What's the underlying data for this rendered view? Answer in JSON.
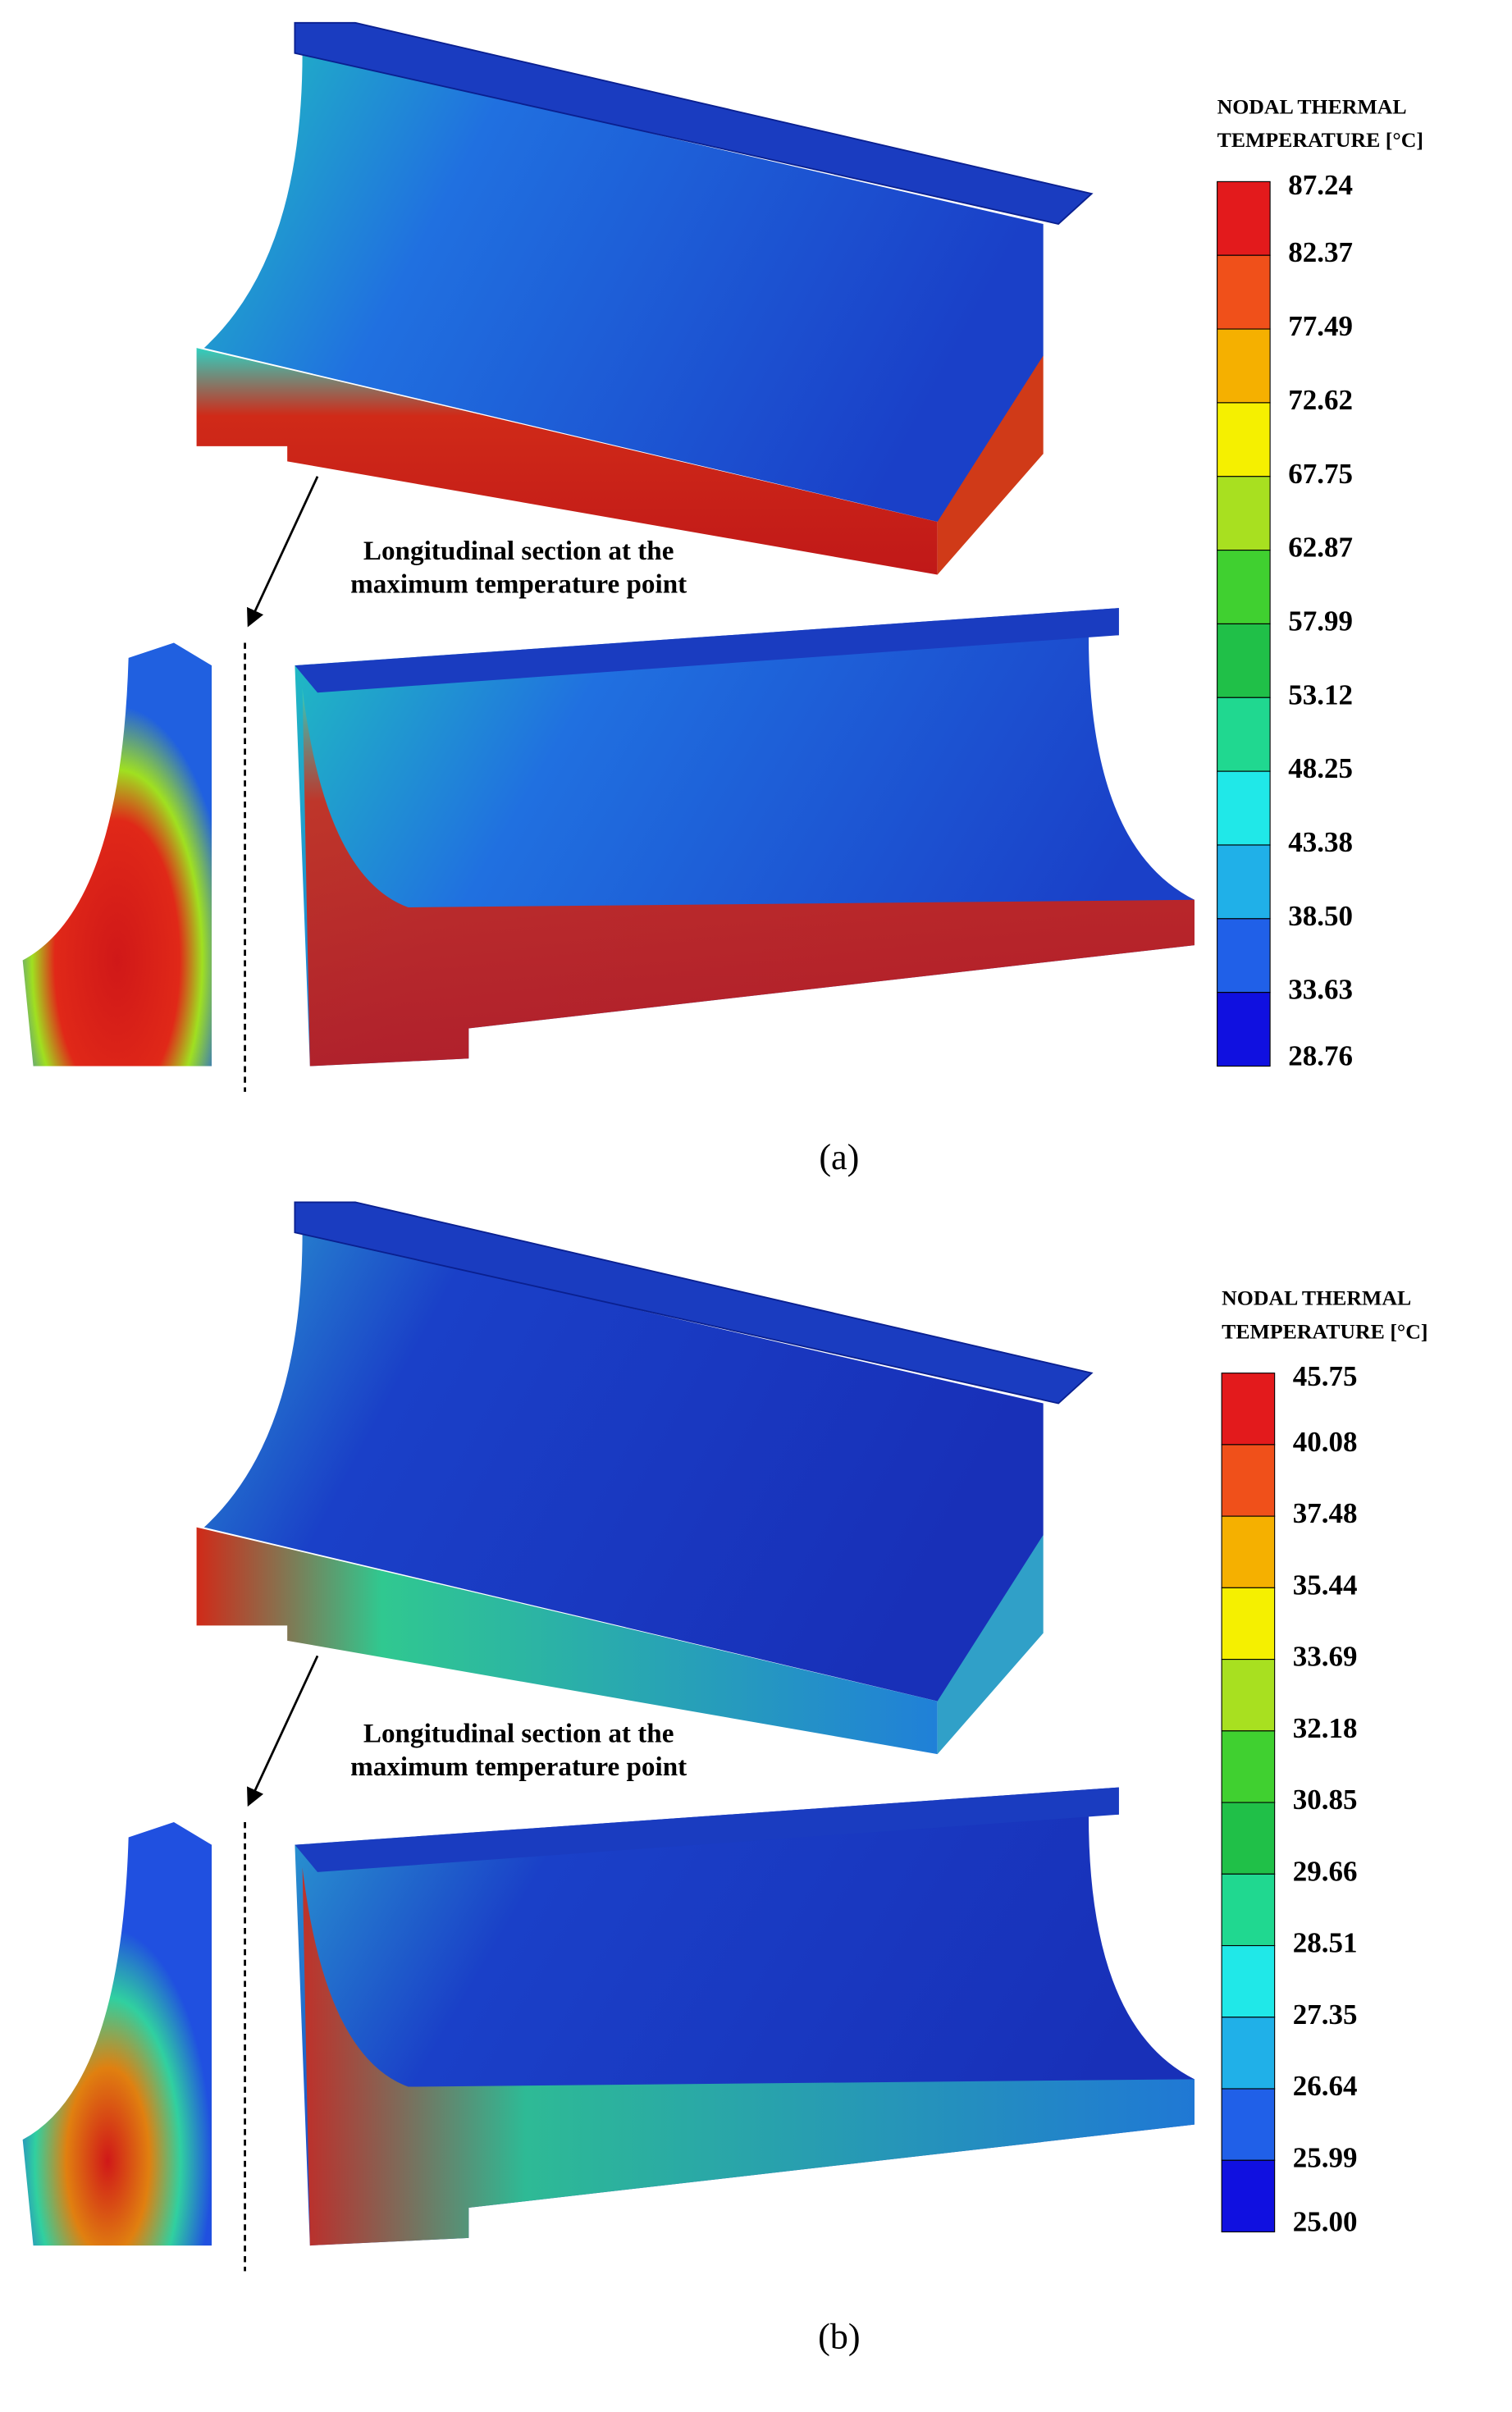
{
  "panels": [
    {
      "label": "(a)",
      "annotation": [
        "Longitudinal section at the",
        "maximum temperature point"
      ],
      "legend": {
        "title": [
          "NODAL THERMAL",
          "TEMPERATURE  [°C]"
        ],
        "labels": [
          "87.24",
          "82.37",
          "77.49",
          "72.62",
          "67.75",
          "62.87",
          "57.99",
          "53.12",
          "48.25",
          "43.38",
          "38.50",
          "33.63",
          "28.76"
        ],
        "colors": [
          "#e31a1c",
          "#f0501a",
          "#f5b000",
          "#f5f000",
          "#a8e020",
          "#40d030",
          "#20c048",
          "#20d890",
          "#20e8e8",
          "#20b0e8",
          "#2060e8",
          "#1010e0"
        ]
      }
    },
    {
      "label": "(b)",
      "annotation": [
        "Longitudinal section at the",
        "maximum temperature point"
      ],
      "legend": {
        "title": [
          "NODAL THERMAL",
          "TEMPERATURE  [°C]"
        ],
        "labels": [
          "45.75",
          "40.08",
          "37.48",
          "35.44",
          "33.69",
          "32.18",
          "30.85",
          "29.66",
          "28.51",
          "27.35",
          "26.64",
          "25.99",
          "25.00"
        ],
        "colors": [
          "#e31a1c",
          "#f0501a",
          "#f5b000",
          "#f5f000",
          "#a8e020",
          "#40d030",
          "#20c048",
          "#20d890",
          "#20e8e8",
          "#20b0e8",
          "#2060e8",
          "#1010e0"
        ]
      }
    }
  ]
}
